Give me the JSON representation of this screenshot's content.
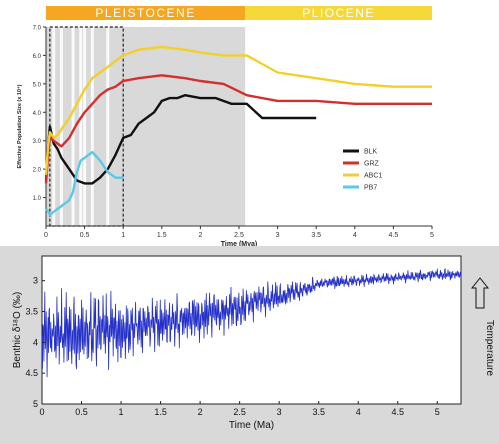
{
  "chart_data": [
    {
      "type": "line",
      "epoch_bar": [
        {
          "label": "PLEISTOCENE",
          "from": 0,
          "to": 2.58,
          "color": "#F5A623"
        },
        {
          "label": "PLIOCENE",
          "from": 2.58,
          "to": 5,
          "color": "#F7D83A"
        }
      ],
      "shaded_region": {
        "from": 0,
        "to": 2.58,
        "color": "#d9d9d9"
      },
      "stripe_lines": [
        0.1,
        0.2,
        0.35,
        0.45,
        0.5,
        0.6,
        0.8
      ],
      "dashed_box": {
        "from": 0.05,
        "to": 1.0,
        "y_from": 0,
        "y_to": 7.0
      },
      "xlabel": "Time (Mya)",
      "ylabel": "Effective Population Size (x 10⁴)",
      "xlim": [
        0,
        5
      ],
      "ylim": [
        0,
        7
      ],
      "xticks": [
        0,
        0.5,
        1,
        1.5,
        2,
        2.5,
        3,
        3.5,
        4,
        4.5,
        5
      ],
      "yticks": [
        1.0,
        2.0,
        3.0,
        4.0,
        5.0,
        6.0,
        7.0
      ],
      "xtick_labels": [
        "0",
        "0.5",
        "1",
        "1.5",
        "2",
        "2.5",
        "3",
        "3.5",
        "4",
        "4.5",
        "5"
      ],
      "ytick_labels": [
        "1.0",
        "2.0",
        "3.0",
        "4.0",
        "5.0",
        "6.0",
        "7.0"
      ],
      "series": [
        {
          "name": "BLK",
          "color": "#111111",
          "x": [
            0,
            0.03,
            0.05,
            0.1,
            0.15,
            0.2,
            0.3,
            0.4,
            0.5,
            0.6,
            0.7,
            0.8,
            0.9,
            1.0,
            1.1,
            1.2,
            1.3,
            1.4,
            1.5,
            1.6,
            1.7,
            1.8,
            2.0,
            2.2,
            2.4,
            2.6,
            2.8,
            3.0,
            3.2,
            3.5
          ],
          "values": [
            1.6,
            2.9,
            3.5,
            2.9,
            2.7,
            2.4,
            2.0,
            1.6,
            1.5,
            1.5,
            1.7,
            2.0,
            2.5,
            3.1,
            3.2,
            3.6,
            3.8,
            4.0,
            4.4,
            4.5,
            4.5,
            4.6,
            4.5,
            4.5,
            4.3,
            4.3,
            3.8,
            3.8,
            3.8,
            3.8
          ]
        },
        {
          "name": "GRZ",
          "color": "#d03030",
          "x": [
            0,
            0.03,
            0.05,
            0.1,
            0.15,
            0.2,
            0.3,
            0.4,
            0.5,
            0.6,
            0.7,
            0.8,
            0.9,
            1.0,
            1.2,
            1.5,
            1.8,
            2.0,
            2.3,
            2.6,
            3.0,
            3.5,
            4.0,
            4.5,
            5.0
          ],
          "values": [
            1.5,
            2.6,
            3.1,
            3.0,
            2.9,
            2.8,
            3.1,
            3.6,
            4.0,
            4.3,
            4.6,
            4.8,
            4.9,
            5.1,
            5.2,
            5.3,
            5.2,
            5.1,
            5.0,
            4.6,
            4.4,
            4.4,
            4.3,
            4.3,
            4.3
          ]
        },
        {
          "name": "ABC1",
          "color": "#f2cf2a",
          "x": [
            0,
            0.03,
            0.05,
            0.1,
            0.15,
            0.2,
            0.3,
            0.4,
            0.5,
            0.6,
            0.7,
            0.8,
            0.9,
            1.0,
            1.2,
            1.5,
            1.8,
            2.0,
            2.3,
            2.6,
            3.0,
            3.5,
            4.0,
            4.5,
            5.0
          ],
          "values": [
            1.8,
            2.9,
            3.3,
            3.1,
            3.2,
            3.4,
            3.8,
            4.3,
            4.8,
            5.2,
            5.4,
            5.6,
            5.8,
            6.0,
            6.2,
            6.3,
            6.2,
            6.1,
            6.0,
            6.0,
            5.4,
            5.2,
            5.0,
            4.9,
            4.9
          ]
        },
        {
          "name": "PB7",
          "color": "#5bc8e6",
          "x": [
            0,
            0.03,
            0.05,
            0.1,
            0.15,
            0.2,
            0.3,
            0.35,
            0.4,
            0.45,
            0.5,
            0.6,
            0.7,
            0.8,
            0.9,
            1.0
          ],
          "values": [
            0.6,
            0.5,
            0.4,
            0.5,
            0.6,
            0.7,
            0.9,
            1.2,
            1.9,
            2.3,
            2.4,
            2.6,
            2.3,
            1.9,
            1.7,
            1.7
          ]
        }
      ]
    },
    {
      "type": "line",
      "xlabel": "Time (Ma)",
      "ylabel": "Benthic δ¹⁸O (‰)",
      "side_label": "Temperature",
      "xlim": [
        0,
        5.3
      ],
      "ylim": [
        2.6,
        5.0
      ],
      "y_inverted": true,
      "xticks": [
        0,
        0.5,
        1,
        1.5,
        2,
        2.5,
        3,
        3.5,
        4,
        4.5,
        5
      ],
      "xtick_labels": [
        "0",
        "0.5",
        "1",
        "1.5",
        "2",
        "2.5",
        "3",
        "3.5",
        "4",
        "4.5",
        "5"
      ],
      "yticks": [
        3,
        3.5,
        4,
        4.5,
        5
      ],
      "ytick_labels": [
        "3",
        "3.5",
        "4",
        "4.5",
        "5"
      ],
      "series": [
        {
          "color": "#2430c8",
          "x": [
            0,
            0.5,
            1,
            1.5,
            2,
            2.5,
            2.7,
            3,
            3.2,
            3.5,
            4,
            4.5,
            5,
            5.3
          ],
          "trend": [
            3.9,
            3.85,
            3.8,
            3.7,
            3.6,
            3.45,
            3.35,
            3.25,
            3.2,
            3.05,
            3.0,
            2.95,
            2.9,
            2.9
          ],
          "amplitude": [
            0.7,
            0.7,
            0.55,
            0.45,
            0.4,
            0.35,
            0.3,
            0.25,
            0.2,
            0.12,
            0.1,
            0.1,
            0.1,
            0.1
          ]
        }
      ]
    }
  ]
}
